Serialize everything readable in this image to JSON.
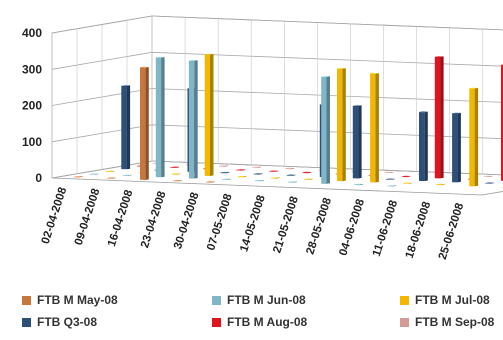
{
  "chart_data": {
    "type": "bar",
    "subtype": "3d-clustered-column",
    "title": "",
    "xlabel": "",
    "ylabel": "",
    "ylim": [
      0,
      400
    ],
    "yticks": [
      "0",
      "100",
      "200",
      "300",
      "400"
    ],
    "grid": true,
    "legend_position": "bottom",
    "categories": [
      "02-04-2008",
      "09-04-2008",
      "16-04-2008",
      "23-04-2008",
      "30-04-2008",
      "07-05-2008",
      "14-05-2008",
      "21-05-2008",
      "28-05-2008",
      "04-06-2008",
      "11-06-2008",
      "18-06-2008",
      "25-06-2008"
    ],
    "series": [
      {
        "name": "FTB M May-08",
        "color": "#c8773c",
        "values": [
          0,
          0,
          310,
          0,
          0,
          null,
          null,
          null,
          null,
          null,
          null,
          null,
          null
        ]
      },
      {
        "name": "FTB M Jun-08",
        "color": "#7fb6c8",
        "values": [
          0,
          0,
          330,
          325,
          0,
          0,
          0,
          295,
          0,
          0,
          null,
          null,
          null
        ]
      },
      {
        "name": "FTB M Jul-08",
        "color": "#f2b800",
        "values": [
          0,
          0,
          0,
          335,
          0,
          0,
          0,
          310,
          300,
          0,
          0,
          270,
          0
        ]
      },
      {
        "name": "FTB Q3-08",
        "color": "#2e4f7a",
        "values": [
          230,
          0,
          230,
          0,
          0,
          0,
          200,
          200,
          0,
          190,
          190,
          0,
          0
        ]
      },
      {
        "name": "FTB M Aug-08",
        "color": "#e0141e",
        "values": [
          0,
          0,
          0,
          0,
          0,
          0,
          0,
          0,
          0,
          335,
          0,
          320,
          325
        ]
      },
      {
        "name": "FTB M Sep-08",
        "color": "#d49a94",
        "values": [
          0,
          0,
          0,
          0,
          0,
          0,
          0,
          0,
          0,
          0,
          0,
          0,
          0
        ]
      }
    ]
  }
}
